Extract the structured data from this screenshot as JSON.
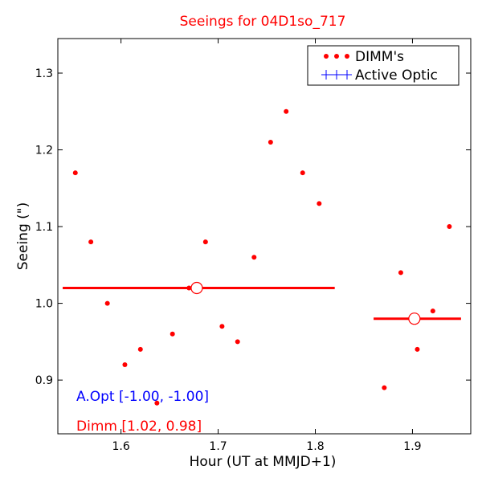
{
  "chart_data": {
    "type": "scatter",
    "title": "Seeings for 04D1so_717",
    "xlabel": "Hour (UT at MMJD+1)",
    "ylabel": "Seeing (\")",
    "xlim": [
      1.535,
      1.96
    ],
    "ylim": [
      0.83,
      1.345
    ],
    "xticks": [
      1.6,
      1.7,
      1.8,
      1.9
    ],
    "xtick_labels": [
      "1.6",
      "1.7",
      "1.8",
      "1.9"
    ],
    "yticks": [
      0.9,
      1.0,
      1.1,
      1.2,
      1.3
    ],
    "ytick_labels": [
      "0.9",
      "1.0",
      "1.1",
      "1.2",
      "1.3"
    ],
    "grid": false,
    "legend_position": "top-right",
    "series": [
      {
        "name": "DIMM's",
        "color": "#ff0000",
        "marker": "dot",
        "points": [
          [
            1.553,
            1.17
          ],
          [
            1.569,
            1.08
          ],
          [
            1.586,
            1.0
          ],
          [
            1.604,
            0.92
          ],
          [
            1.62,
            0.94
          ],
          [
            1.637,
            0.87
          ],
          [
            1.653,
            0.96
          ],
          [
            1.67,
            1.02
          ],
          [
            1.687,
            1.08
          ],
          [
            1.704,
            0.97
          ],
          [
            1.72,
            0.95
          ],
          [
            1.737,
            1.06
          ],
          [
            1.754,
            1.21
          ],
          [
            1.77,
            1.25
          ],
          [
            1.787,
            1.17
          ],
          [
            1.804,
            1.13
          ],
          [
            1.871,
            0.89
          ],
          [
            1.888,
            1.04
          ],
          [
            1.905,
            0.94
          ],
          [
            1.921,
            0.99
          ],
          [
            1.938,
            1.1
          ]
        ]
      },
      {
        "name": "Active Optic",
        "color": "#0000ff",
        "marker": "plus",
        "points": []
      }
    ],
    "dimm_means": [
      {
        "x": 1.678,
        "y": 1.02,
        "xmin": 1.54,
        "xmax": 1.82
      },
      {
        "x": 1.902,
        "y": 0.98,
        "xmin": 1.86,
        "xmax": 1.95
      }
    ],
    "annotations": [
      {
        "text": "A.Opt [-1.00, -1.00]",
        "color": "#0000ff"
      },
      {
        "text": "Dimm [1.02, 0.98]",
        "color": "#ff0000"
      }
    ]
  }
}
